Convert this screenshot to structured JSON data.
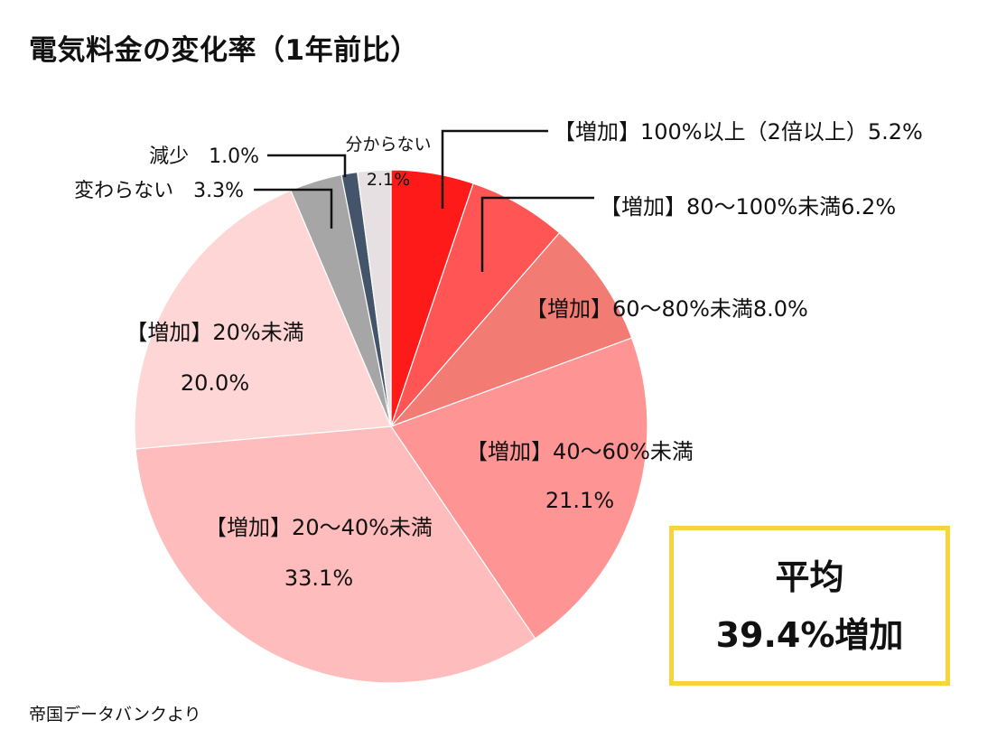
{
  "title": "電気料金の変化率（1年前比）",
  "source": "帝国データバンクより",
  "average_box": {
    "label": "平均",
    "value": "39.4%増加",
    "border_color": "#f7d43c"
  },
  "chart_data": {
    "type": "pie",
    "title": "電気料金の変化率（1年前比）",
    "slices": [
      {
        "label": "【増加】100%以上（2倍以上）",
        "value": 5.2,
        "value_label": "5.2%",
        "color": "#ff1a1a"
      },
      {
        "label": "【増加】80～100%未満",
        "value": 6.2,
        "value_label": "6.2%",
        "color": "#ff5555"
      },
      {
        "label": "【増加】60～80%未満",
        "value": 8.0,
        "value_label": "8.0%",
        "color": "#f27b73"
      },
      {
        "label": "【増加】40～60%未満",
        "value": 21.1,
        "value_label": "21.1%",
        "color": "#ff9494"
      },
      {
        "label": "【増加】20～40%未満",
        "value": 33.1,
        "value_label": "33.1%",
        "color": "#ffbcbc"
      },
      {
        "label": "【増加】20%未満",
        "value": 20.0,
        "value_label": "20.0%",
        "color": "#ffd6d6"
      },
      {
        "label": "変わらない",
        "value": 3.3,
        "value_label": "3.3%",
        "color": "#a6a6a6"
      },
      {
        "label": "減少",
        "value": 1.0,
        "value_label": "1.0%",
        "color": "#44546a"
      },
      {
        "label": "分からない",
        "value": 2.1,
        "value_label": "2.1%",
        "color": "#e6e0e3"
      }
    ],
    "start_angle_deg": 0,
    "direction": "clockwise"
  }
}
